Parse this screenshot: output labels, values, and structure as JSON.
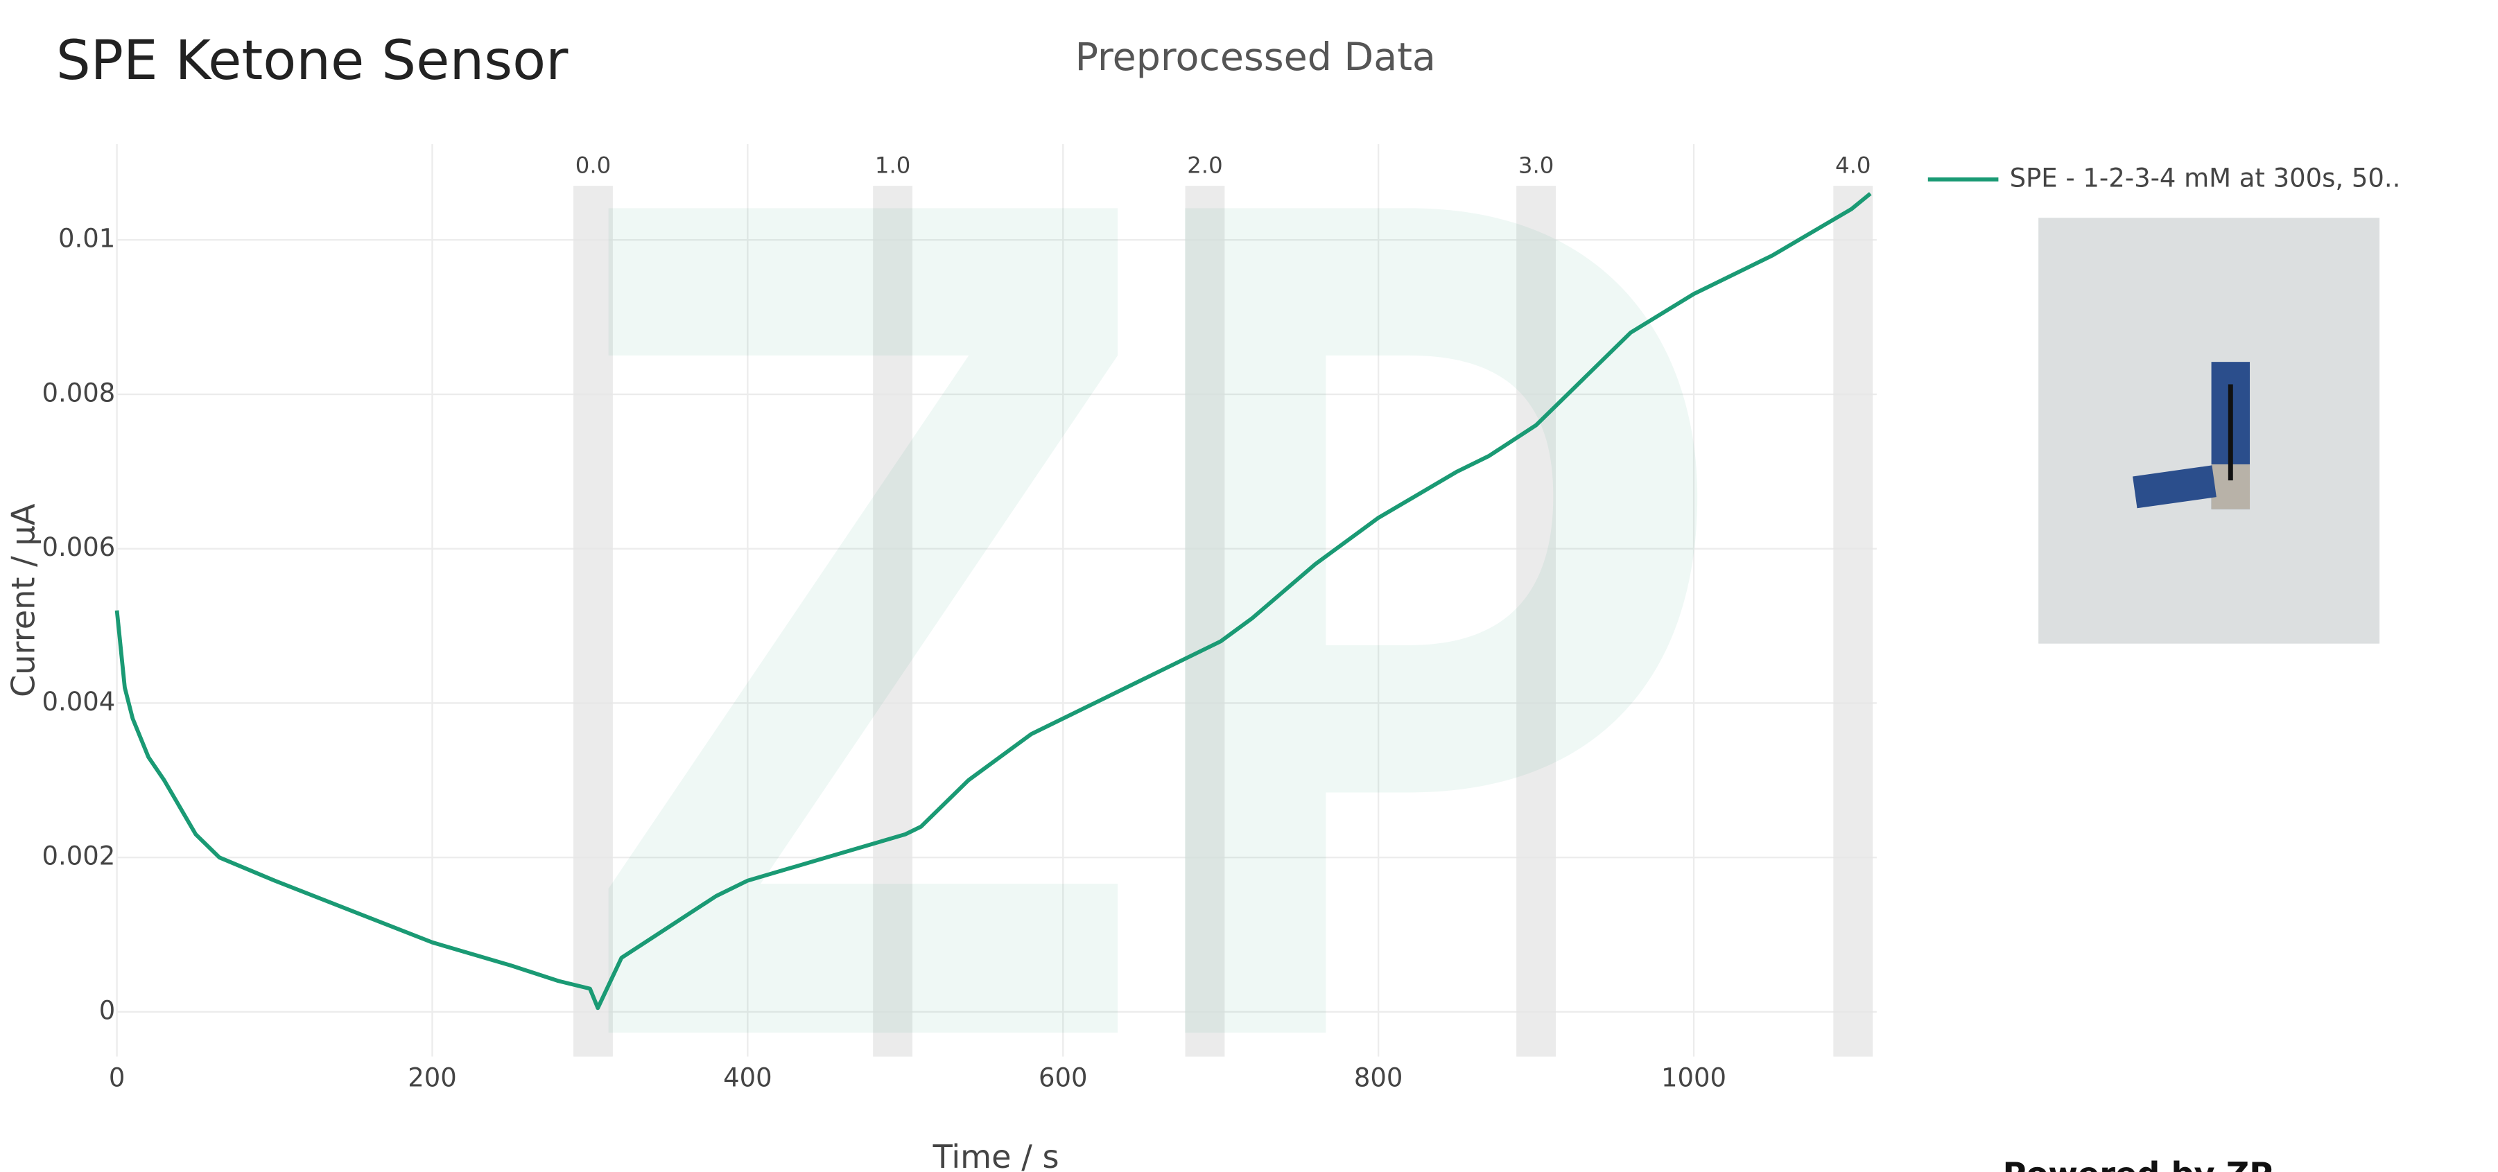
{
  "chart_data": {
    "type": "line",
    "header": "SPE Ketone Sensor",
    "title": "Preprocessed Data",
    "x_label": "Time / s",
    "y_label": "Current / µA",
    "footer": "Powered by ZP",
    "x": [
      0,
      5,
      10,
      20,
      30,
      50,
      65,
      100,
      150,
      200,
      250,
      280,
      300,
      305,
      320,
      350,
      380,
      400,
      450,
      500,
      510,
      540,
      580,
      620,
      650,
      700,
      720,
      760,
      800,
      850,
      870,
      900,
      920,
      960,
      1000,
      1050,
      1100,
      1112
    ],
    "series": [
      {
        "name": "SPE - 1-2-3-4 mM at 300s, 50..",
        "color": "#1a9a74",
        "values": [
          0.0052,
          0.0042,
          0.0038,
          0.0033,
          0.003,
          0.0023,
          0.002,
          0.0017,
          0.0013,
          0.0009,
          0.0006,
          0.0004,
          0.0003,
          5e-05,
          0.0007,
          0.0011,
          0.0015,
          0.0017,
          0.002,
          0.0023,
          0.0024,
          0.003,
          0.0036,
          0.004,
          0.0043,
          0.0048,
          0.0051,
          0.0058,
          0.0064,
          0.007,
          0.0072,
          0.0076,
          0.008,
          0.0088,
          0.0093,
          0.0098,
          0.0104,
          0.0106
        ]
      }
    ],
    "markers": [
      {
        "x": 302,
        "label": "0.0"
      },
      {
        "x": 492,
        "label": "1.0"
      },
      {
        "x": 690,
        "label": "2.0"
      },
      {
        "x": 900,
        "label": "3.0"
      },
      {
        "x": 1101,
        "label": "4.0"
      }
    ],
    "xlim": [
      0,
      1116
    ],
    "ylim": [
      -0.00058,
      0.01124
    ],
    "xticks": [
      0,
      200,
      400,
      600,
      800,
      1000
    ],
    "yticks": [
      0,
      0.002,
      0.004,
      0.006,
      0.008,
      0.01
    ],
    "grid": true
  }
}
